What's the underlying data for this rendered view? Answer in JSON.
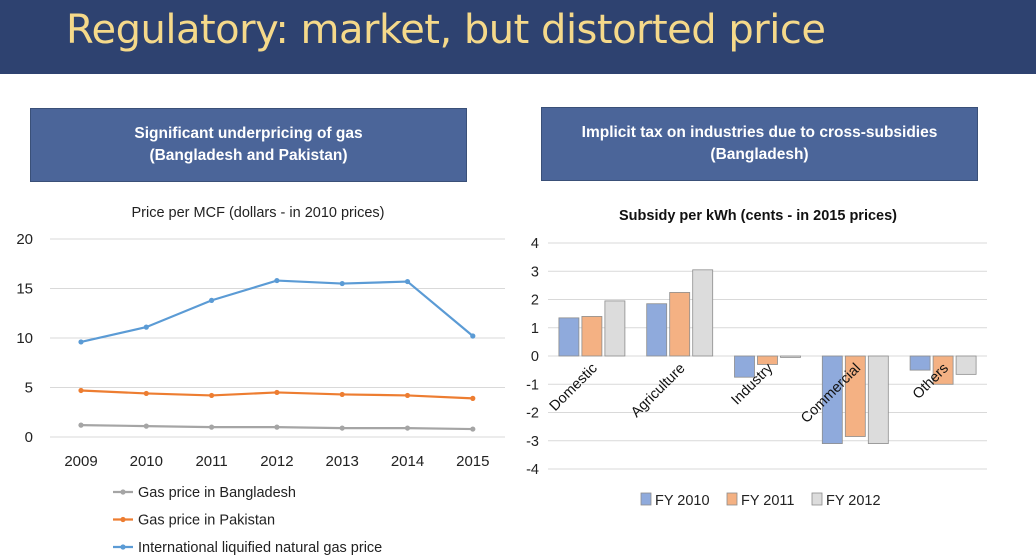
{
  "slide": {
    "title": "Regulatory: market, but distorted price"
  },
  "panels": {
    "left": {
      "line1": "Significant underpricing of gas",
      "line2": "(Bangladesh and Pakistan)"
    },
    "right": {
      "line1": "Implicit tax on industries due to cross-subsidies",
      "line2": "(Bangladesh)"
    }
  },
  "colors": {
    "header": "#2e4270",
    "title": "#f5d98a",
    "panel": "#4b6599"
  },
  "chart_data": [
    {
      "type": "line",
      "title": "Price per MCF (dollars - in 2010 prices)",
      "x": [
        "2009",
        "2010",
        "2011",
        "2012",
        "2013",
        "2014",
        "2015"
      ],
      "ylim": [
        0,
        20
      ],
      "yticks": [
        "0",
        "5",
        "10",
        "15",
        "20"
      ],
      "legend_position": "bottom",
      "series": [
        {
          "name": "Gas price in Bangladesh",
          "color": "#a5a5a5",
          "values": [
            1.2,
            1.1,
            1.0,
            1.0,
            0.9,
            0.9,
            0.8
          ]
        },
        {
          "name": "Gas price in Pakistan",
          "color": "#ed7d31",
          "values": [
            4.7,
            4.4,
            4.2,
            4.5,
            4.3,
            4.2,
            3.9
          ]
        },
        {
          "name": "International liquified natural gas price",
          "color": "#5b9bd5",
          "values": [
            9.6,
            11.1,
            13.8,
            15.8,
            15.5,
            15.7,
            10.2
          ]
        }
      ]
    },
    {
      "type": "bar",
      "title": "Subsidy per kWh (cents - in 2015 prices)",
      "categories": [
        "Domestic",
        "Agriculture",
        "Industry",
        "Commercial",
        "Others"
      ],
      "ylim": [
        -4,
        4
      ],
      "yticks": [
        "-4",
        "-3",
        "-2",
        "-1",
        "0",
        "1",
        "2",
        "3",
        "4"
      ],
      "legend_position": "bottom",
      "series": [
        {
          "name": "FY 2010",
          "color": "#8faadc",
          "values": [
            1.35,
            1.85,
            -0.75,
            -3.1,
            -0.5
          ]
        },
        {
          "name": "FY 2011",
          "color": "#f4b183",
          "values": [
            1.4,
            2.25,
            -0.3,
            -2.85,
            -1.0
          ]
        },
        {
          "name": "FY 2012",
          "color": "#dcdcdc",
          "values": [
            1.95,
            3.05,
            -0.05,
            -3.1,
            -0.65
          ]
        }
      ]
    }
  ]
}
